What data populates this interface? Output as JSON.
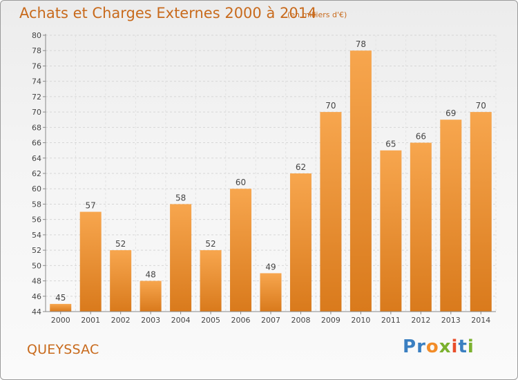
{
  "title": "Achats et Charges Externes 2000 à 2014",
  "unit_label": "(en milliers d'€)",
  "commune": "QUEYSSAC",
  "logo": {
    "letters": [
      {
        "ch": "P",
        "color": "#3a7fc1"
      },
      {
        "ch": "r",
        "color": "#3a7fc1"
      },
      {
        "ch": "o",
        "color": "#f28c28"
      },
      {
        "ch": "x",
        "color": "#7bb12e"
      },
      {
        "ch": "i",
        "color": "#e94e2b"
      },
      {
        "ch": "t",
        "color": "#3a7fc1"
      },
      {
        "ch": "i",
        "color": "#7bb12e"
      }
    ]
  },
  "colors": {
    "bar_top": "#f7a64e",
    "bar_bottom": "#d97a1c",
    "text_accent": "#c86a1c"
  },
  "chart_data": {
    "type": "bar",
    "title": "Achats et Charges Externes 2000 à 2014",
    "categories": [
      "2000",
      "2001",
      "2002",
      "2003",
      "2004",
      "2005",
      "2006",
      "2007",
      "2008",
      "2009",
      "2010",
      "2011",
      "2012",
      "2013",
      "2014"
    ],
    "values": [
      45,
      57,
      52,
      48,
      58,
      52,
      60,
      49,
      62,
      70,
      78,
      65,
      66,
      69,
      70
    ],
    "ylim": [
      44,
      80
    ],
    "yticks": [
      44,
      46,
      48,
      50,
      52,
      54,
      56,
      58,
      60,
      62,
      64,
      66,
      68,
      70,
      72,
      74,
      76,
      78,
      80
    ],
    "grid": true,
    "data_labels": true
  }
}
